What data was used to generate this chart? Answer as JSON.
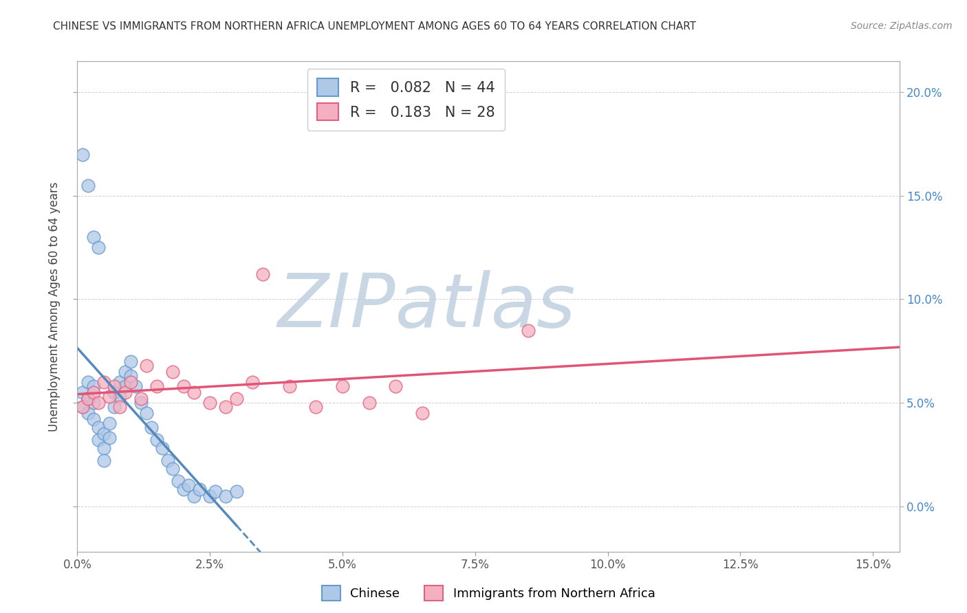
{
  "title": "CHINESE VS IMMIGRANTS FROM NORTHERN AFRICA UNEMPLOYMENT AMONG AGES 60 TO 64 YEARS CORRELATION CHART",
  "source": "Source: ZipAtlas.com",
  "ylabel": "Unemployment Among Ages 60 to 64 years",
  "xlim": [
    0.0,
    0.155
  ],
  "ylim": [
    -0.022,
    0.215
  ],
  "ytick_positions": [
    0.0,
    0.05,
    0.1,
    0.15,
    0.2
  ],
  "ytick_labels_right": [
    "0.0%",
    "5.0%",
    "10.0%",
    "15.0%",
    "20.0%"
  ],
  "xtick_positions": [
    0.0,
    0.025,
    0.05,
    0.075,
    0.1,
    0.125,
    0.15
  ],
  "xtick_labels": [
    "0.0%",
    "2.5%",
    "5.0%",
    "7.5%",
    "10.0%",
    "12.5%",
    "15.0%"
  ],
  "chinese_fill": "#aec8e8",
  "chinese_edge": "#6699cc",
  "nafrica_fill": "#f4b0c0",
  "nafrica_edge": "#e06080",
  "trend_chinese_color": "#5588bb",
  "trend_nafrica_color": "#e05575",
  "R_chinese": "0.082",
  "N_chinese": "44",
  "R_nafrica": "0.183",
  "N_nafrica": "28",
  "watermark": "ZIPatlas",
  "watermark_color_zip": "#c0d0e0",
  "watermark_color_atlas": "#90b8d8",
  "legend_label_chinese": "Chinese",
  "legend_label_nafrica": "Immigrants from Northern Africa",
  "right_axis_color": "#4488cc",
  "chinese_x": [
    0.001,
    0.001,
    0.002,
    0.002,
    0.002,
    0.003,
    0.003,
    0.003,
    0.004,
    0.004,
    0.005,
    0.005,
    0.005,
    0.006,
    0.006,
    0.007,
    0.007,
    0.008,
    0.008,
    0.009,
    0.009,
    0.01,
    0.01,
    0.011,
    0.012,
    0.013,
    0.014,
    0.015,
    0.016,
    0.017,
    0.018,
    0.019,
    0.02,
    0.021,
    0.022,
    0.023,
    0.025,
    0.026,
    0.028,
    0.03,
    0.001,
    0.002,
    0.003,
    0.004
  ],
  "chinese_y": [
    0.055,
    0.048,
    0.06,
    0.052,
    0.045,
    0.058,
    0.05,
    0.042,
    0.038,
    0.032,
    0.035,
    0.028,
    0.022,
    0.04,
    0.033,
    0.055,
    0.048,
    0.06,
    0.053,
    0.065,
    0.058,
    0.07,
    0.063,
    0.058,
    0.05,
    0.045,
    0.038,
    0.032,
    0.028,
    0.022,
    0.018,
    0.012,
    0.008,
    0.01,
    0.005,
    0.008,
    0.005,
    0.007,
    0.005,
    0.007,
    0.17,
    0.155,
    0.13,
    0.125
  ],
  "nafrica_x": [
    0.001,
    0.002,
    0.003,
    0.004,
    0.005,
    0.006,
    0.007,
    0.008,
    0.009,
    0.01,
    0.012,
    0.013,
    0.015,
    0.018,
    0.02,
    0.022,
    0.025,
    0.028,
    0.03,
    0.033,
    0.035,
    0.04,
    0.045,
    0.05,
    0.055,
    0.06,
    0.065,
    0.085
  ],
  "nafrica_y": [
    0.048,
    0.052,
    0.055,
    0.05,
    0.06,
    0.053,
    0.058,
    0.048,
    0.055,
    0.06,
    0.052,
    0.068,
    0.058,
    0.065,
    0.058,
    0.055,
    0.05,
    0.048,
    0.052,
    0.06,
    0.112,
    0.058,
    0.048,
    0.058,
    0.05,
    0.058,
    0.045,
    0.085
  ]
}
